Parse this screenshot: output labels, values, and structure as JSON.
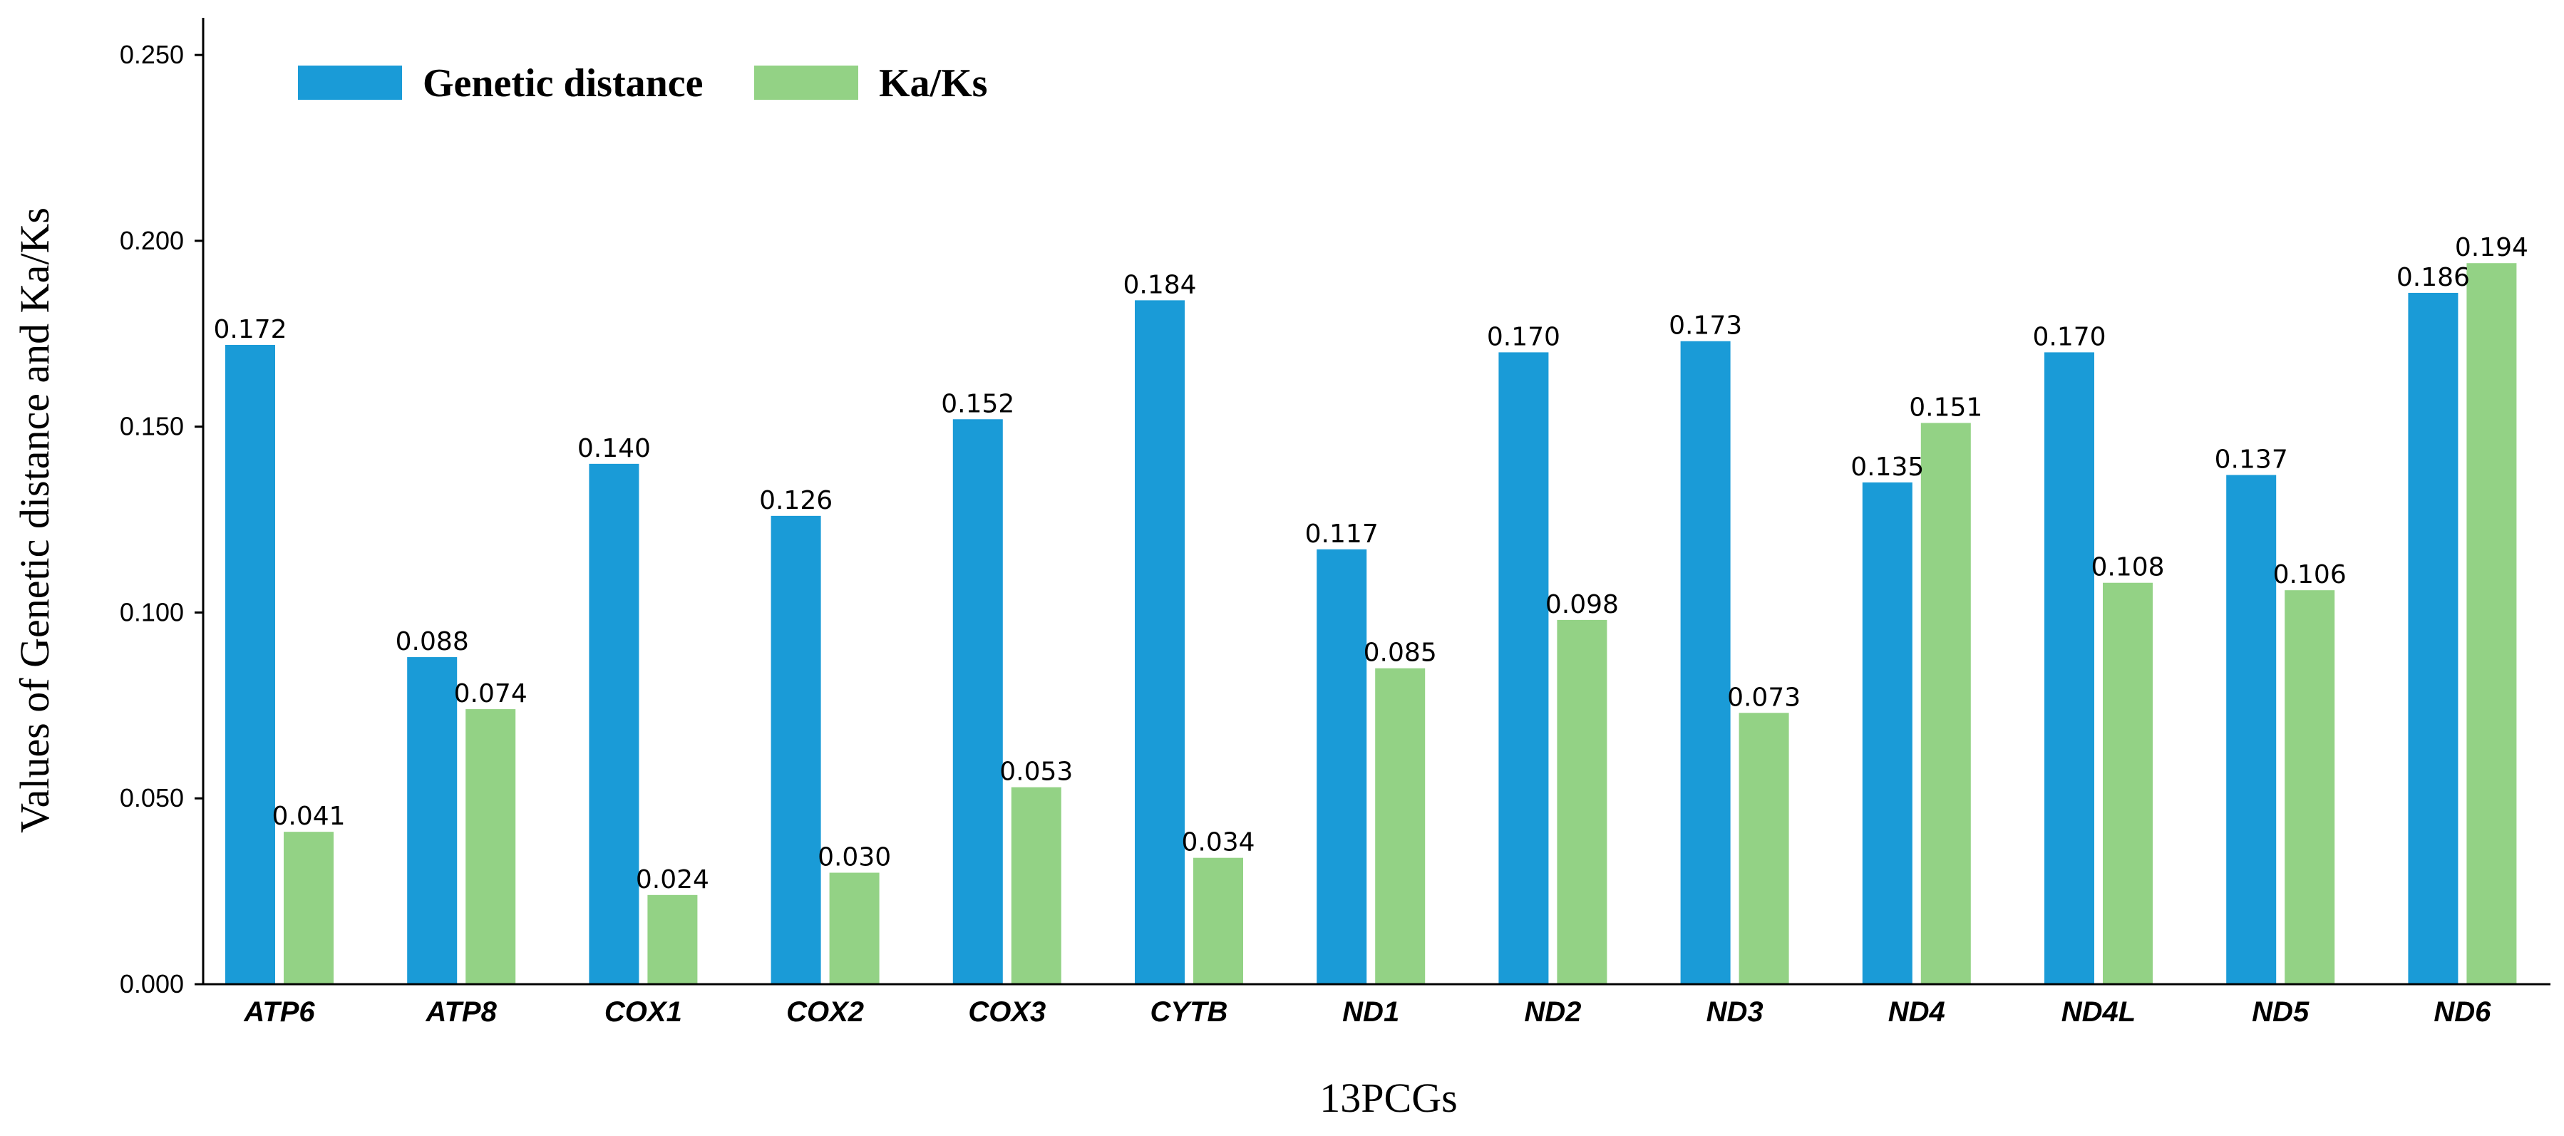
{
  "chart_data": {
    "type": "bar",
    "categories": [
      "ATP6",
      "ATP8",
      "COX1",
      "COX2",
      "COX3",
      "CYTB",
      "ND1",
      "ND2",
      "ND3",
      "ND4",
      "ND4L",
      "ND5",
      "ND6"
    ],
    "series": [
      {
        "name": "Genetic distance",
        "color": "#1a9bd7",
        "values": [
          0.172,
          0.088,
          0.14,
          0.126,
          0.152,
          0.184,
          0.117,
          0.17,
          0.173,
          0.135,
          0.17,
          0.137,
          0.186
        ],
        "labels": [
          "0.172",
          "0.088",
          "0.140",
          "0.126",
          "0.152",
          "0.184",
          "0.117",
          "0.170",
          "0.173",
          "0.135",
          "0.170",
          "0.137",
          "0.186"
        ]
      },
      {
        "name": "Ka/Ks",
        "color": "#93d285",
        "values": [
          0.041,
          0.074,
          0.024,
          0.03,
          0.053,
          0.034,
          0.085,
          0.098,
          0.073,
          0.151,
          0.108,
          0.106,
          0.194
        ],
        "labels": [
          "0.041",
          "0.074",
          "0.024",
          "0.030",
          "0.053",
          "0.034",
          "0.085",
          "0.098",
          "0.073",
          "0.151",
          "0.108",
          "0.106",
          "0.194"
        ]
      }
    ],
    "title": "",
    "xlabel": "13PCGs",
    "ylabel": "Values of Genetic distance and Ka/Ks",
    "ylim": [
      0,
      0.26
    ],
    "yticks": [
      0,
      0.05,
      0.1,
      0.15,
      0.2,
      0.25
    ],
    "ytick_labels": [
      "0.000",
      "0.050",
      "0.100",
      "0.150",
      "0.200",
      "0.250"
    ],
    "grid": false,
    "legend": "top-left"
  }
}
